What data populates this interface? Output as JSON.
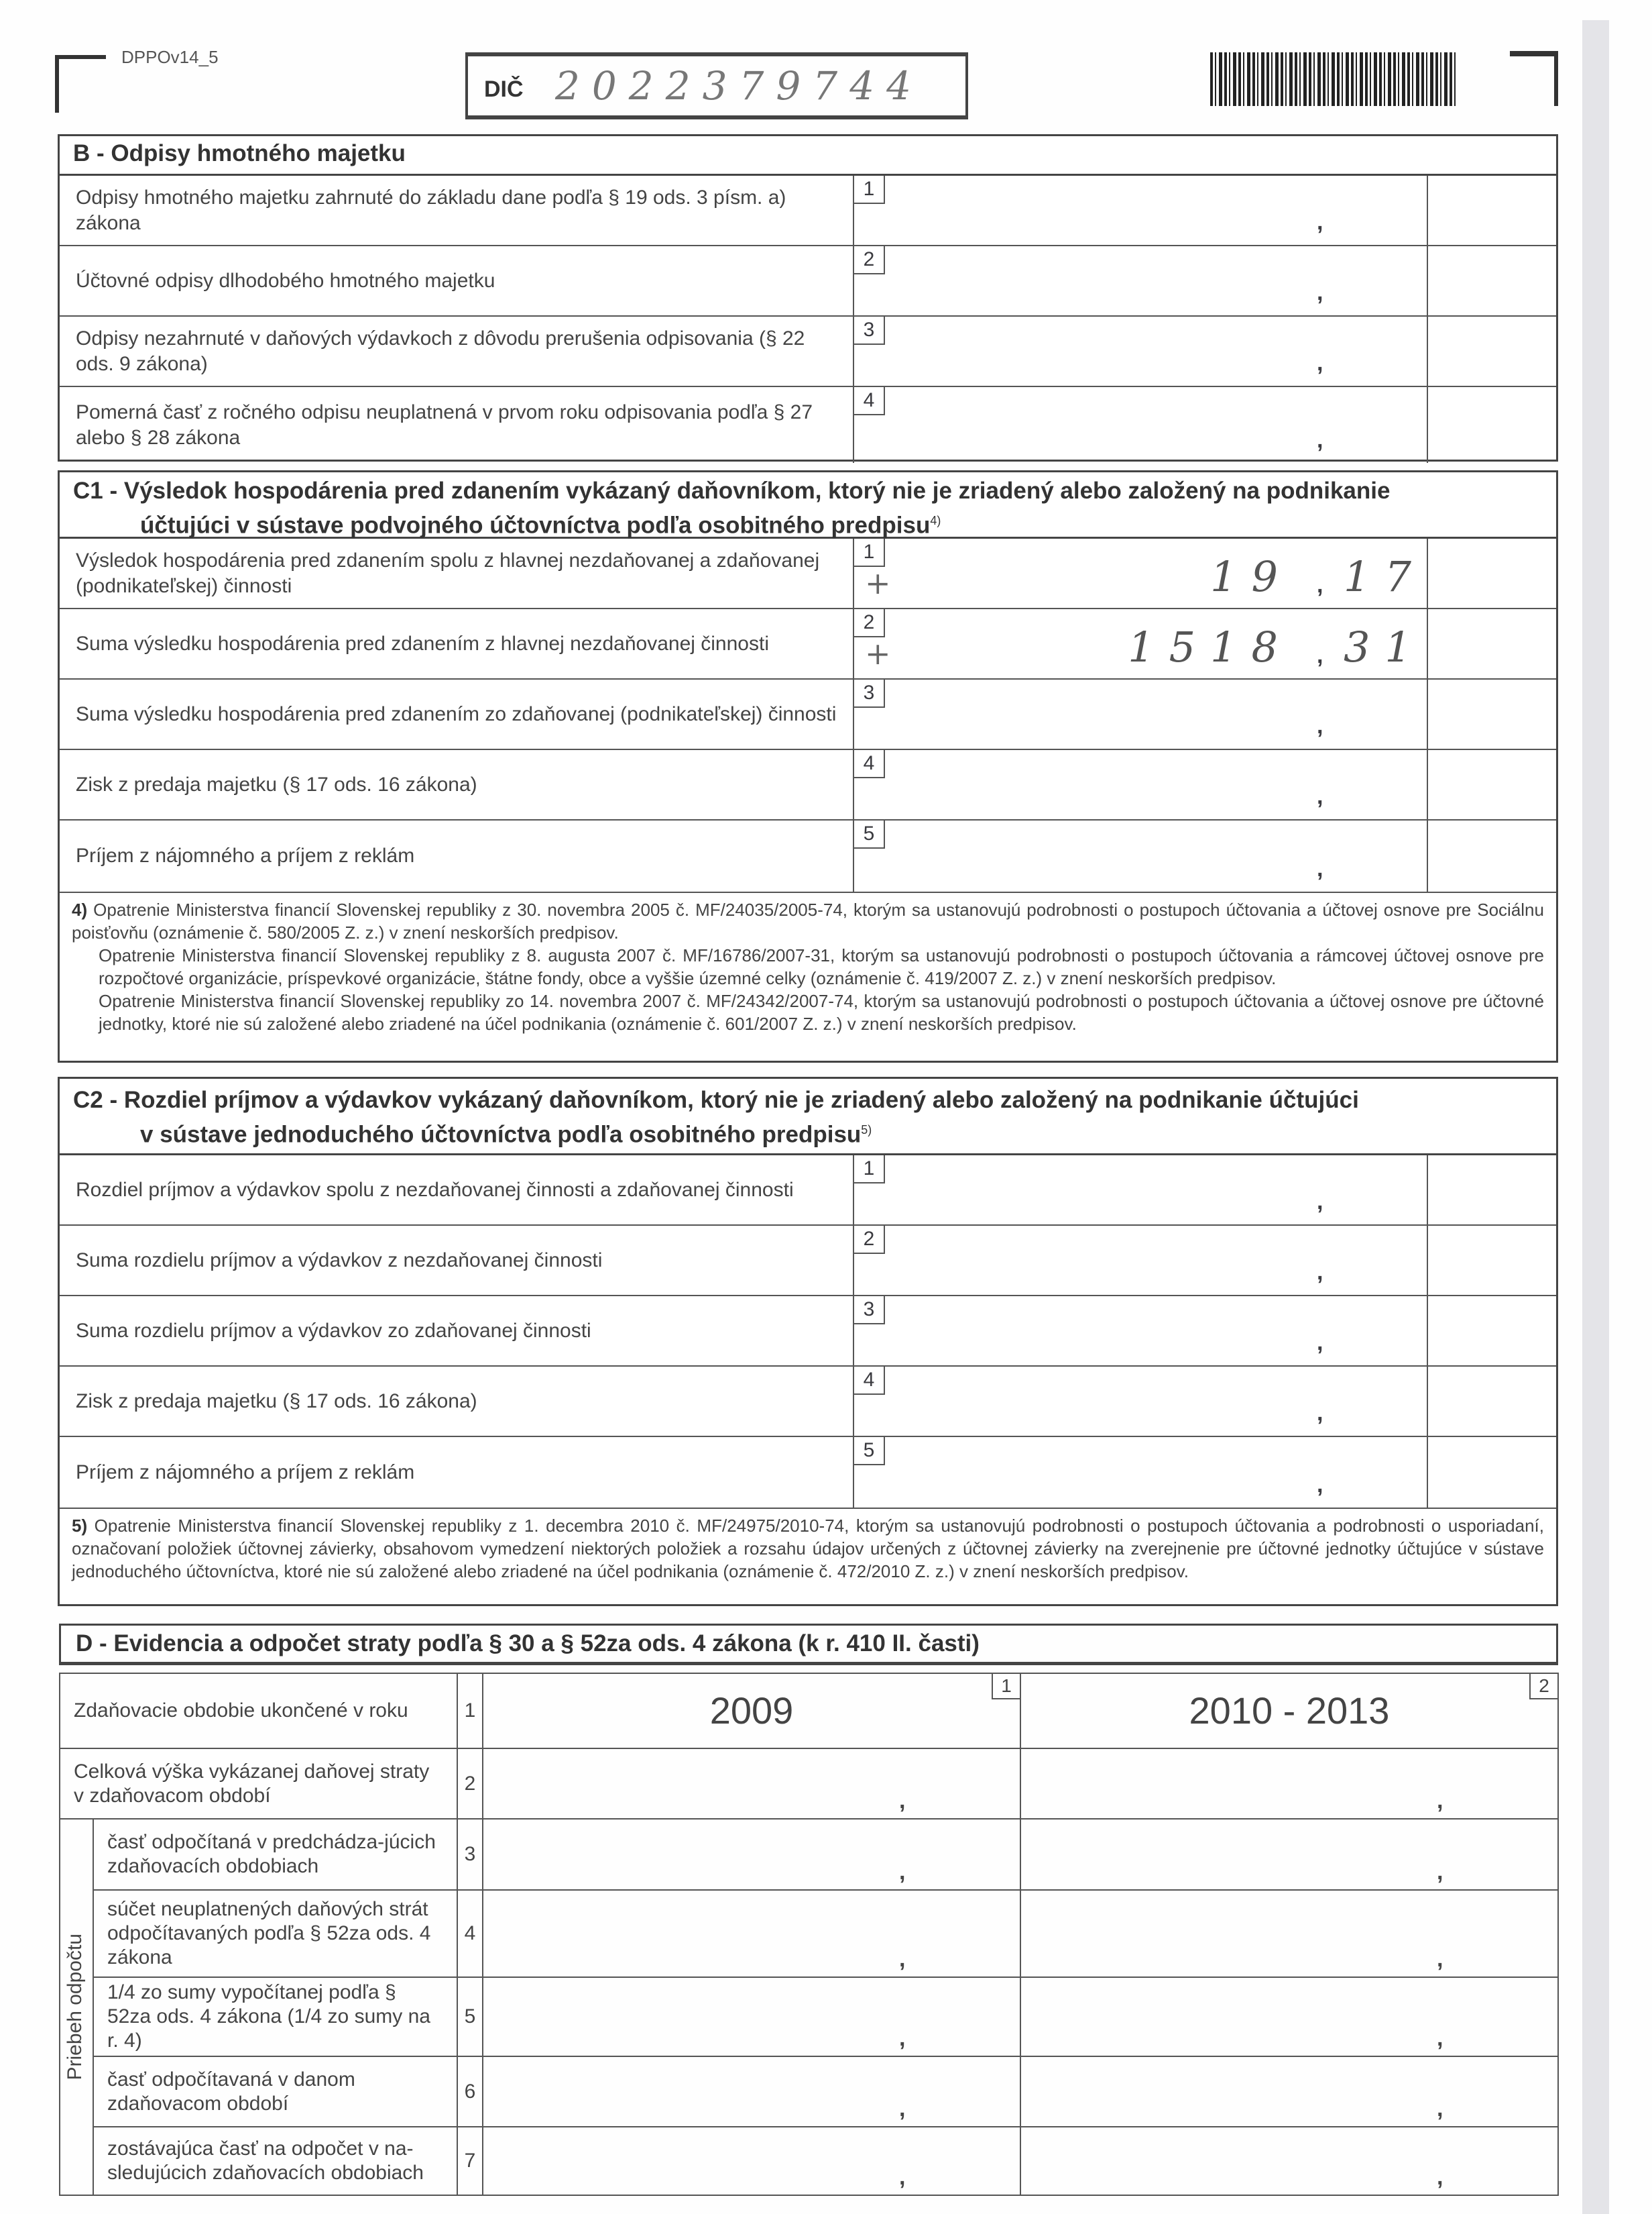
{
  "header": {
    "form_code": "DPPOv14_5",
    "dic_label": "DIČ",
    "dic_value": "2022379744"
  },
  "decimal_separator": ",",
  "section_b": {
    "title": "B - Odpisy hmotného majetku",
    "rows": [
      {
        "num": "1",
        "label": "Odpisy hmotného majetku zahrnuté do základu dane podľa § 19 ods. 3 písm. a) zákona"
      },
      {
        "num": "2",
        "label": "Účtovné odpisy dlhodobého hmotného majetku"
      },
      {
        "num": "3",
        "label": "Odpisy nezahrnuté v daňových výdavkoch z dôvodu prerušenia odpisovania (§ 22 ods. 9 zákona)"
      },
      {
        "num": "4",
        "label": "Pomerná časť z ročného odpisu neuplatnená v prvom roku odpisovania podľa § 27 alebo § 28 zákona"
      }
    ]
  },
  "section_c1": {
    "title_line1": "C1 - Výsledok hospodárenia pred zdanením vykázaný daňovníkom, ktorý nie je zriadený alebo založený na podnikanie",
    "title_line2": "účtujúci v sústave podvojného účtovníctva podľa osobitného predpisu",
    "title_sup": "4)",
    "rows": [
      {
        "num": "1",
        "label": "Výsledok hospodárenia pred zdanením spolu z hlavnej nezdaňovanej a zdaňovanej (podnikateľskej) činnosti",
        "sign": "+",
        "integer": "19",
        "decimals": "17"
      },
      {
        "num": "2",
        "label": "Suma výsledku hospodárenia pred zdanením z hlavnej nezdaňovanej činnosti",
        "sign": "+",
        "integer": "1518",
        "decimals": "31"
      },
      {
        "num": "3",
        "label": "Suma výsledku hospodárenia pred zdanením zo zdaňovanej (podnikateľskej) činnosti"
      },
      {
        "num": "4",
        "label": "Zisk z predaja majetku (§ 17 ods. 16 zákona)"
      },
      {
        "num": "5",
        "label": "Príjem z nájomného a príjem z reklám"
      }
    ],
    "footnote_mark": "4)",
    "footnotes": [
      "Opatrenie Ministerstva financií Slovenskej republiky z 30. novembra 2005 č. MF/24035/2005-74, ktorým sa ustanovujú podrobnosti o postupoch účtovania a účtovej osnove pre Sociálnu poisťovňu (oznámenie č. 580/2005 Z. z.) v znení neskorších predpisov.",
      "Opatrenie Ministerstva financií Slovenskej republiky z 8. augusta 2007 č. MF/16786/2007-31, ktorým sa ustanovujú podrobnosti o postupoch účtovania a rámcovej účtovej osnove pre rozpočtové organizácie, príspevkové organizácie, štátne fondy, obce a vyššie územné celky (oznámenie č. 419/2007 Z. z.) v znení neskorších predpisov.",
      "Opatrenie Ministerstva financií Slovenskej republiky zo 14. novembra 2007 č. MF/24342/2007-74, ktorým sa ustanovujú podrobnosti o postupoch účtovania a účtovej osnove pre účtovné jednotky, ktoré nie sú založené alebo zriadené na účel podnikania (oznámenie č. 601/2007 Z. z.) v znení neskorších predpisov."
    ]
  },
  "section_c2": {
    "title_line1": "C2 - Rozdiel príjmov a výdavkov vykázaný daňovníkom, ktorý nie je zriadený alebo založený na podnikanie účtujúci",
    "title_line2": "v sústave jednoduchého účtovníctva podľa osobitného predpisu",
    "title_sup": "5)",
    "rows": [
      {
        "num": "1",
        "label": "Rozdiel príjmov a výdavkov spolu z nezdaňovanej činnosti a zdaňovanej činnosti"
      },
      {
        "num": "2",
        "label": "Suma rozdielu príjmov a výdavkov z nezdaňovanej činnosti"
      },
      {
        "num": "3",
        "label": "Suma rozdielu príjmov a výdavkov zo zdaňovanej činnosti"
      },
      {
        "num": "4",
        "label": "Zisk z predaja majetku (§ 17 ods. 16 zákona)"
      },
      {
        "num": "5",
        "label": "Príjem z nájomného a príjem z reklám"
      }
    ],
    "footnote_mark": "5)",
    "footnote": "Opatrenie Ministerstva financií Slovenskej republiky z 1. decembra 2010 č. MF/24975/2010-74, ktorým sa ustanovujú podrobnosti o postupoch účtovania a podrobnosti o usporiadaní, označovaní položiek účtovnej závierky, obsahovom vymedzení niektorých položiek a rozsahu údajov určených z účtovnej závierky na zverejnenie pre účtovné jednotky účtujúce v sústave jednoduchého účtovníctva, ktoré nie sú založené alebo zriadené na účel podnikania (oznámenie č. 472/2010 Z. z.) v znení neskorších predpisov."
  },
  "section_d": {
    "title": "D - Evidencia a odpočet straty podľa § 30 a § 52za ods. 4 zákona (k r. 410 II. časti)",
    "column_numbers": [
      "1",
      "2"
    ],
    "group_label": "Priebeh odpočtu",
    "rows": [
      {
        "num": "1",
        "label": "Zdaňovacie obdobie ukončené v roku",
        "col1": "2009",
        "col2": "2010 - 2013"
      },
      {
        "num": "2",
        "label": "Celková výška vykázanej daňovej straty v zdaňovacom období"
      },
      {
        "num": "3",
        "label": "časť odpočítaná v predchádza-júcich zdaňovacích obdobiach"
      },
      {
        "num": "4",
        "label": "súčet neuplatnených daňových strát odpočítavaných podľa § 52za ods. 4 zákona"
      },
      {
        "num": "5",
        "label": "1/4 zo sumy vypočítanej podľa § 52za ods. 4 zákona (1/4 zo sumy na r. 4)"
      },
      {
        "num": "6",
        "label": "časť odpočítavaná v danom zdaňovacom období"
      },
      {
        "num": "7",
        "label": "zostávajúca časť na odpočet v na-sledujúcich zdaňovacích obdobiach"
      }
    ]
  }
}
